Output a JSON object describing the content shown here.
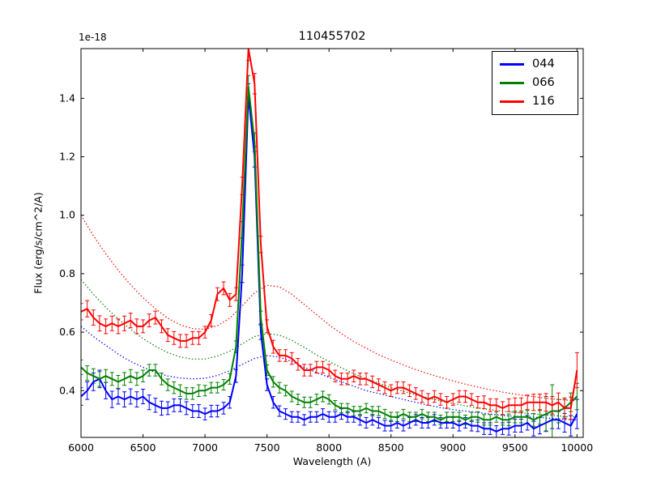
{
  "chart_data": {
    "type": "line",
    "title": "110455702",
    "xlabel": "Wavelength (A)",
    "ylabel": "Flux (erg/s/cm^2/A)",
    "y_offset_text": "1e-18",
    "xlim": [
      6000,
      10050
    ],
    "ylim": [
      0.24,
      1.57
    ],
    "xticks": [
      6000,
      6500,
      7000,
      7500,
      8000,
      8500,
      9000,
      9500,
      10000
    ],
    "yticks": [
      0.4,
      0.6,
      0.8,
      1.0,
      1.2,
      1.4
    ],
    "grid": false,
    "legend": {
      "position": "upper right",
      "entries": [
        {
          "label": "044",
          "color": "#0000ff"
        },
        {
          "label": "066",
          "color": "#008000"
        },
        {
          "label": "116",
          "color": "#ff0000"
        }
      ]
    },
    "series": [
      {
        "name": "044",
        "color": "#0000ff",
        "style": "solid",
        "linewidth": 2,
        "x_start": 6000,
        "x_step": 50,
        "y": [
          0.38,
          0.4,
          0.43,
          0.44,
          0.4,
          0.37,
          0.38,
          0.37,
          0.38,
          0.37,
          0.38,
          0.36,
          0.35,
          0.34,
          0.34,
          0.35,
          0.35,
          0.34,
          0.33,
          0.33,
          0.32,
          0.33,
          0.33,
          0.34,
          0.36,
          0.45,
          0.8,
          1.41,
          1.2,
          0.6,
          0.42,
          0.36,
          0.33,
          0.32,
          0.31,
          0.31,
          0.3,
          0.31,
          0.31,
          0.32,
          0.31,
          0.31,
          0.32,
          0.31,
          0.31,
          0.3,
          0.29,
          0.3,
          0.29,
          0.28,
          0.28,
          0.29,
          0.28,
          0.29,
          0.3,
          0.29,
          0.29,
          0.3,
          0.29,
          0.29,
          0.29,
          0.28,
          0.29,
          0.28,
          0.28,
          0.27,
          0.27,
          0.26,
          0.27,
          0.27,
          0.28,
          0.28,
          0.29,
          0.27,
          0.28,
          0.29,
          0.3,
          0.3,
          0.29,
          0.28,
          0.32
        ],
        "yerr": [
          0.03,
          0.03,
          0.03,
          0.03,
          0.028,
          0.028,
          0.026,
          0.026,
          0.026,
          0.026,
          0.025,
          0.025,
          0.024,
          0.024,
          0.022,
          0.022,
          0.022,
          0.022,
          0.022,
          0.022,
          0.02,
          0.02,
          0.02,
          0.02,
          0.02,
          0.022,
          0.03,
          0.04,
          0.035,
          0.025,
          0.02,
          0.02,
          0.018,
          0.018,
          0.018,
          0.018,
          0.018,
          0.018,
          0.018,
          0.018,
          0.018,
          0.018,
          0.018,
          0.018,
          0.018,
          0.018,
          0.018,
          0.018,
          0.018,
          0.018,
          0.018,
          0.018,
          0.018,
          0.018,
          0.018,
          0.018,
          0.018,
          0.018,
          0.018,
          0.018,
          0.018,
          0.018,
          0.018,
          0.018,
          0.02,
          0.02,
          0.02,
          0.02,
          0.02,
          0.022,
          0.022,
          0.022,
          0.025,
          0.025,
          0.028,
          0.028,
          0.03,
          0.03,
          0.032,
          0.035,
          0.05
        ]
      },
      {
        "name": "066",
        "color": "#008000",
        "style": "solid",
        "linewidth": 2,
        "x_start": 6000,
        "x_step": 50,
        "y": [
          0.48,
          0.46,
          0.45,
          0.44,
          0.45,
          0.44,
          0.43,
          0.44,
          0.45,
          0.44,
          0.45,
          0.47,
          0.47,
          0.44,
          0.42,
          0.41,
          0.4,
          0.39,
          0.39,
          0.4,
          0.4,
          0.41,
          0.41,
          0.42,
          0.44,
          0.55,
          0.95,
          1.44,
          1.25,
          0.65,
          0.47,
          0.43,
          0.41,
          0.4,
          0.38,
          0.37,
          0.36,
          0.36,
          0.37,
          0.38,
          0.37,
          0.35,
          0.34,
          0.34,
          0.33,
          0.33,
          0.34,
          0.33,
          0.33,
          0.32,
          0.31,
          0.31,
          0.32,
          0.31,
          0.31,
          0.32,
          0.31,
          0.31,
          0.3,
          0.31,
          0.31,
          0.31,
          0.3,
          0.31,
          0.31,
          0.3,
          0.3,
          0.31,
          0.3,
          0.3,
          0.31,
          0.31,
          0.31,
          0.3,
          0.31,
          0.32,
          0.33,
          0.33,
          0.34,
          0.36,
          0.38
        ],
        "yerr": [
          0.025,
          0.025,
          0.025,
          0.025,
          0.022,
          0.022,
          0.022,
          0.022,
          0.022,
          0.022,
          0.02,
          0.02,
          0.02,
          0.02,
          0.02,
          0.02,
          0.02,
          0.02,
          0.02,
          0.02,
          0.018,
          0.018,
          0.018,
          0.018,
          0.018,
          0.02,
          0.028,
          0.038,
          0.032,
          0.022,
          0.018,
          0.018,
          0.018,
          0.018,
          0.018,
          0.018,
          0.018,
          0.018,
          0.018,
          0.018,
          0.016,
          0.016,
          0.016,
          0.016,
          0.016,
          0.016,
          0.016,
          0.016,
          0.016,
          0.016,
          0.016,
          0.016,
          0.016,
          0.016,
          0.016,
          0.016,
          0.016,
          0.016,
          0.016,
          0.016,
          0.016,
          0.016,
          0.016,
          0.016,
          0.018,
          0.018,
          0.018,
          0.018,
          0.018,
          0.02,
          0.02,
          0.02,
          0.022,
          0.022,
          0.025,
          0.06,
          0.09,
          0.04,
          0.03,
          0.032,
          0.045
        ]
      },
      {
        "name": "116",
        "color": "#ff0000",
        "style": "solid",
        "linewidth": 2,
        "x_start": 6000,
        "x_step": 50,
        "y": [
          0.67,
          0.68,
          0.65,
          0.63,
          0.62,
          0.63,
          0.62,
          0.63,
          0.64,
          0.62,
          0.62,
          0.64,
          0.65,
          0.62,
          0.59,
          0.58,
          0.57,
          0.57,
          0.58,
          0.58,
          0.6,
          0.64,
          0.73,
          0.75,
          0.71,
          0.73,
          1.1,
          1.57,
          1.45,
          0.9,
          0.62,
          0.55,
          0.52,
          0.52,
          0.51,
          0.49,
          0.47,
          0.47,
          0.48,
          0.48,
          0.47,
          0.45,
          0.44,
          0.44,
          0.45,
          0.44,
          0.44,
          0.43,
          0.42,
          0.41,
          0.4,
          0.41,
          0.41,
          0.4,
          0.39,
          0.38,
          0.37,
          0.38,
          0.37,
          0.36,
          0.37,
          0.38,
          0.38,
          0.37,
          0.36,
          0.36,
          0.35,
          0.35,
          0.34,
          0.35,
          0.35,
          0.35,
          0.36,
          0.36,
          0.36,
          0.36,
          0.35,
          0.36,
          0.34,
          0.34,
          0.47
        ],
        "yerr": [
          0.028,
          0.028,
          0.026,
          0.026,
          0.025,
          0.025,
          0.025,
          0.025,
          0.025,
          0.025,
          0.022,
          0.022,
          0.022,
          0.022,
          0.022,
          0.022,
          0.022,
          0.022,
          0.022,
          0.022,
          0.02,
          0.02,
          0.022,
          0.022,
          0.022,
          0.022,
          0.03,
          0.04,
          0.035,
          0.028,
          0.022,
          0.022,
          0.02,
          0.02,
          0.02,
          0.02,
          0.02,
          0.02,
          0.02,
          0.02,
          0.02,
          0.02,
          0.02,
          0.02,
          0.02,
          0.02,
          0.02,
          0.02,
          0.02,
          0.02,
          0.02,
          0.02,
          0.02,
          0.02,
          0.02,
          0.02,
          0.02,
          0.02,
          0.02,
          0.02,
          0.02,
          0.02,
          0.02,
          0.02,
          0.02,
          0.022,
          0.022,
          0.022,
          0.022,
          0.022,
          0.025,
          0.025,
          0.025,
          0.028,
          0.028,
          0.03,
          0.03,
          0.032,
          0.035,
          0.038,
          0.06
        ]
      },
      {
        "name": "044 model",
        "color": "#0000ff",
        "style": "dotted",
        "linewidth": 1,
        "x_start": 6000,
        "x_step": 100,
        "y": [
          0.62,
          0.585,
          0.555,
          0.525,
          0.5,
          0.48,
          0.462,
          0.45,
          0.443,
          0.44,
          0.442,
          0.452,
          0.468,
          0.49,
          0.51,
          0.52,
          0.515,
          0.5,
          0.48,
          0.462,
          0.445,
          0.43,
          0.415,
          0.4,
          0.39,
          0.38,
          0.37,
          0.36,
          0.35,
          0.342,
          0.335,
          0.33,
          0.325,
          0.32,
          0.315,
          0.312,
          0.31,
          0.308,
          0.305,
          0.302,
          0.3
        ]
      },
      {
        "name": "066 model",
        "color": "#008000",
        "style": "dotted",
        "linewidth": 1,
        "x_start": 6000,
        "x_step": 100,
        "y": [
          0.78,
          0.73,
          0.685,
          0.645,
          0.61,
          0.578,
          0.552,
          0.53,
          0.515,
          0.508,
          0.508,
          0.518,
          0.535,
          0.56,
          0.585,
          0.595,
          0.59,
          0.572,
          0.548,
          0.522,
          0.5,
          0.478,
          0.458,
          0.44,
          0.425,
          0.41,
          0.398,
          0.386,
          0.375,
          0.365,
          0.356,
          0.348,
          0.341,
          0.335,
          0.33,
          0.326,
          0.322,
          0.318,
          0.315,
          0.312,
          0.31
        ]
      },
      {
        "name": "116 model",
        "color": "#ff0000",
        "style": "dotted",
        "linewidth": 1,
        "x_start": 6000,
        "x_step": 100,
        "y": [
          1.0,
          0.93,
          0.868,
          0.812,
          0.762,
          0.718,
          0.68,
          0.648,
          0.625,
          0.612,
          0.61,
          0.622,
          0.648,
          0.69,
          0.735,
          0.76,
          0.755,
          0.73,
          0.695,
          0.66,
          0.625,
          0.595,
          0.568,
          0.545,
          0.523,
          0.505,
          0.488,
          0.472,
          0.458,
          0.445,
          0.433,
          0.422,
          0.412,
          0.403,
          0.395,
          0.388,
          0.382,
          0.377,
          0.372,
          0.368,
          0.365
        ]
      }
    ]
  }
}
